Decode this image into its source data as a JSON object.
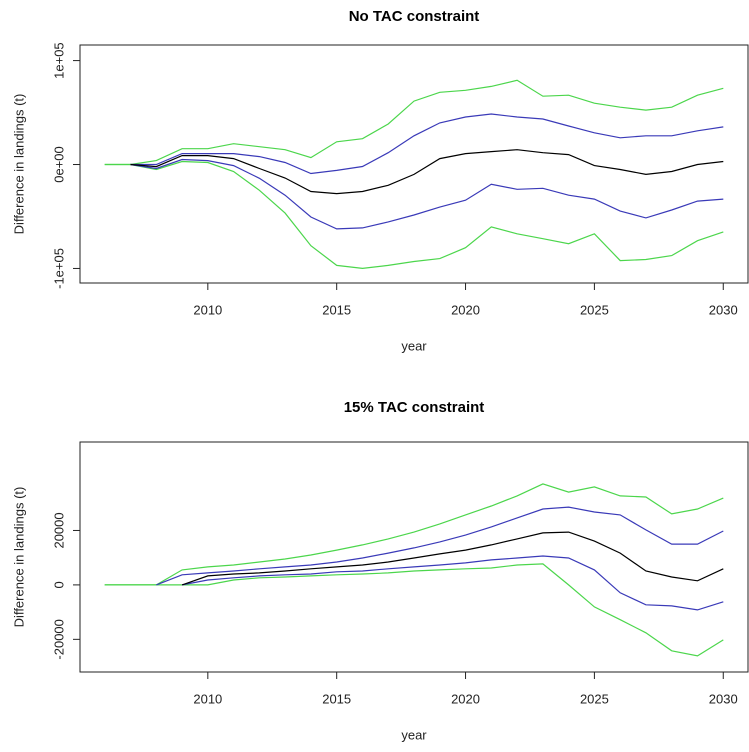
{
  "chart_data": [
    {
      "type": "line",
      "title": "No TAC constraint",
      "xlabel": "year",
      "ylabel": "Difference in landings (t)",
      "x": [
        2006,
        2007,
        2008,
        2009,
        2010,
        2011,
        2012,
        2013,
        2014,
        2015,
        2016,
        2017,
        2018,
        2019,
        2020,
        2021,
        2022,
        2023,
        2024,
        2025,
        2026,
        2027,
        2028,
        2029,
        2030
      ],
      "xlim": [
        2005.04,
        2030.96
      ],
      "xticks": [
        2010,
        2015,
        2020,
        2025,
        2030
      ],
      "ylim": [
        -114000,
        115000
      ],
      "yticks": [
        {
          "value": -100000,
          "label": "-1e+05"
        },
        {
          "value": 0,
          "label": "0e+00"
        },
        {
          "value": 100000,
          "label": "1e+05"
        }
      ],
      "series": [
        {
          "color": "#4cd64c",
          "values": [
            0,
            0,
            3800,
            15200,
            15200,
            20000,
            17100,
            14300,
            6700,
            21900,
            24800,
            39000,
            61000,
            69500,
            71400,
            75200,
            81000,
            65700,
            66700,
            59000,
            55200,
            52400,
            55200,
            66700,
            73300
          ]
        },
        {
          "color": "#4cd64c",
          "values": [
            0,
            0,
            -4800,
            2900,
            1900,
            -6700,
            -24800,
            -46700,
            -78100,
            -97100,
            -100000,
            -97100,
            -93300,
            -90500,
            -80000,
            -60000,
            -66700,
            -71400,
            -76200,
            -66700,
            -92400,
            -91400,
            -87600,
            -73300,
            -64800
          ]
        },
        {
          "color": "#3a3ab8",
          "values": [
            null,
            0,
            0,
            10500,
            10500,
            10500,
            7600,
            1900,
            -8600,
            -5700,
            -1900,
            11400,
            27600,
            40000,
            45700,
            48600,
            45700,
            43800,
            37100,
            30500,
            25700,
            27600,
            27600,
            32400,
            36200
          ]
        },
        {
          "color": "#3a3ab8",
          "values": [
            null,
            0,
            -3800,
            4800,
            3800,
            -1000,
            -13300,
            -29500,
            -50500,
            -61900,
            -61000,
            -55200,
            -48600,
            -41000,
            -34300,
            -19000,
            -23800,
            -22900,
            -29500,
            -33300,
            -44800,
            -51400,
            -43800,
            -35200,
            -33300
          ]
        },
        {
          "color": "#000000",
          "values": [
            null,
            0,
            -2000,
            8600,
            8600,
            5700,
            -3800,
            -13000,
            -26000,
            -28000,
            -26000,
            -20000,
            -9500,
            5700,
            10500,
            12400,
            14300,
            11400,
            9500,
            -1000,
            -4800,
            -9500,
            -6700,
            0,
            2900
          ]
        }
      ]
    },
    {
      "type": "line",
      "title": "15% TAC constraint",
      "xlabel": "year",
      "ylabel": "Difference in landings (t)",
      "x": [
        2006,
        2007,
        2008,
        2009,
        2010,
        2011,
        2012,
        2013,
        2014,
        2015,
        2016,
        2017,
        2018,
        2019,
        2020,
        2021,
        2022,
        2023,
        2024,
        2025,
        2026,
        2027,
        2028,
        2029,
        2030
      ],
      "xlim": [
        2005.04,
        2030.96
      ],
      "xticks": [
        2010,
        2015,
        2020,
        2025,
        2030
      ],
      "ylim": [
        -32000,
        52500
      ],
      "yticks": [
        -20000,
        0,
        20000
      ],
      "series": [
        {
          "color": "#4cd64c",
          "values": [
            0,
            0,
            0,
            5500,
            6600,
            7300,
            8400,
            9500,
            11000,
            12800,
            14700,
            16900,
            19400,
            22400,
            25700,
            29000,
            32700,
            37100,
            34100,
            36000,
            32700,
            32300,
            26100,
            27900,
            31900
          ]
        },
        {
          "color": "#4cd64c",
          "values": [
            0,
            0,
            0,
            0,
            0,
            1800,
            2600,
            2900,
            3300,
            3700,
            4000,
            4400,
            5100,
            5500,
            5900,
            6200,
            7300,
            7700,
            0,
            -8100,
            -12800,
            -17600,
            -24200,
            -26100,
            -20200
          ]
        },
        {
          "color": "#3a3ab8",
          "values": [
            null,
            null,
            0,
            3700,
            4400,
            5100,
            5900,
            6600,
            7300,
            8400,
            9900,
            11700,
            13600,
            15800,
            18300,
            21300,
            24600,
            27900,
            28600,
            26800,
            25700,
            20200,
            15000,
            15000,
            19800
          ]
        },
        {
          "color": "#3a3ab8",
          "values": [
            null,
            null,
            null,
            0,
            1800,
            2600,
            3300,
            3700,
            4000,
            4800,
            5100,
            5900,
            6600,
            7300,
            8100,
            9200,
            9900,
            10600,
            9900,
            5500,
            -2900,
            -7300,
            -7700,
            -9200,
            -6200
          ]
        },
        {
          "color": "#000000",
          "values": [
            null,
            null,
            null,
            0,
            3300,
            4000,
            4400,
            5100,
            5900,
            6600,
            7300,
            8400,
            9900,
            11400,
            12800,
            14700,
            16900,
            19100,
            19400,
            16100,
            11700,
            5100,
            2900,
            1500,
            5900
          ]
        }
      ]
    }
  ]
}
